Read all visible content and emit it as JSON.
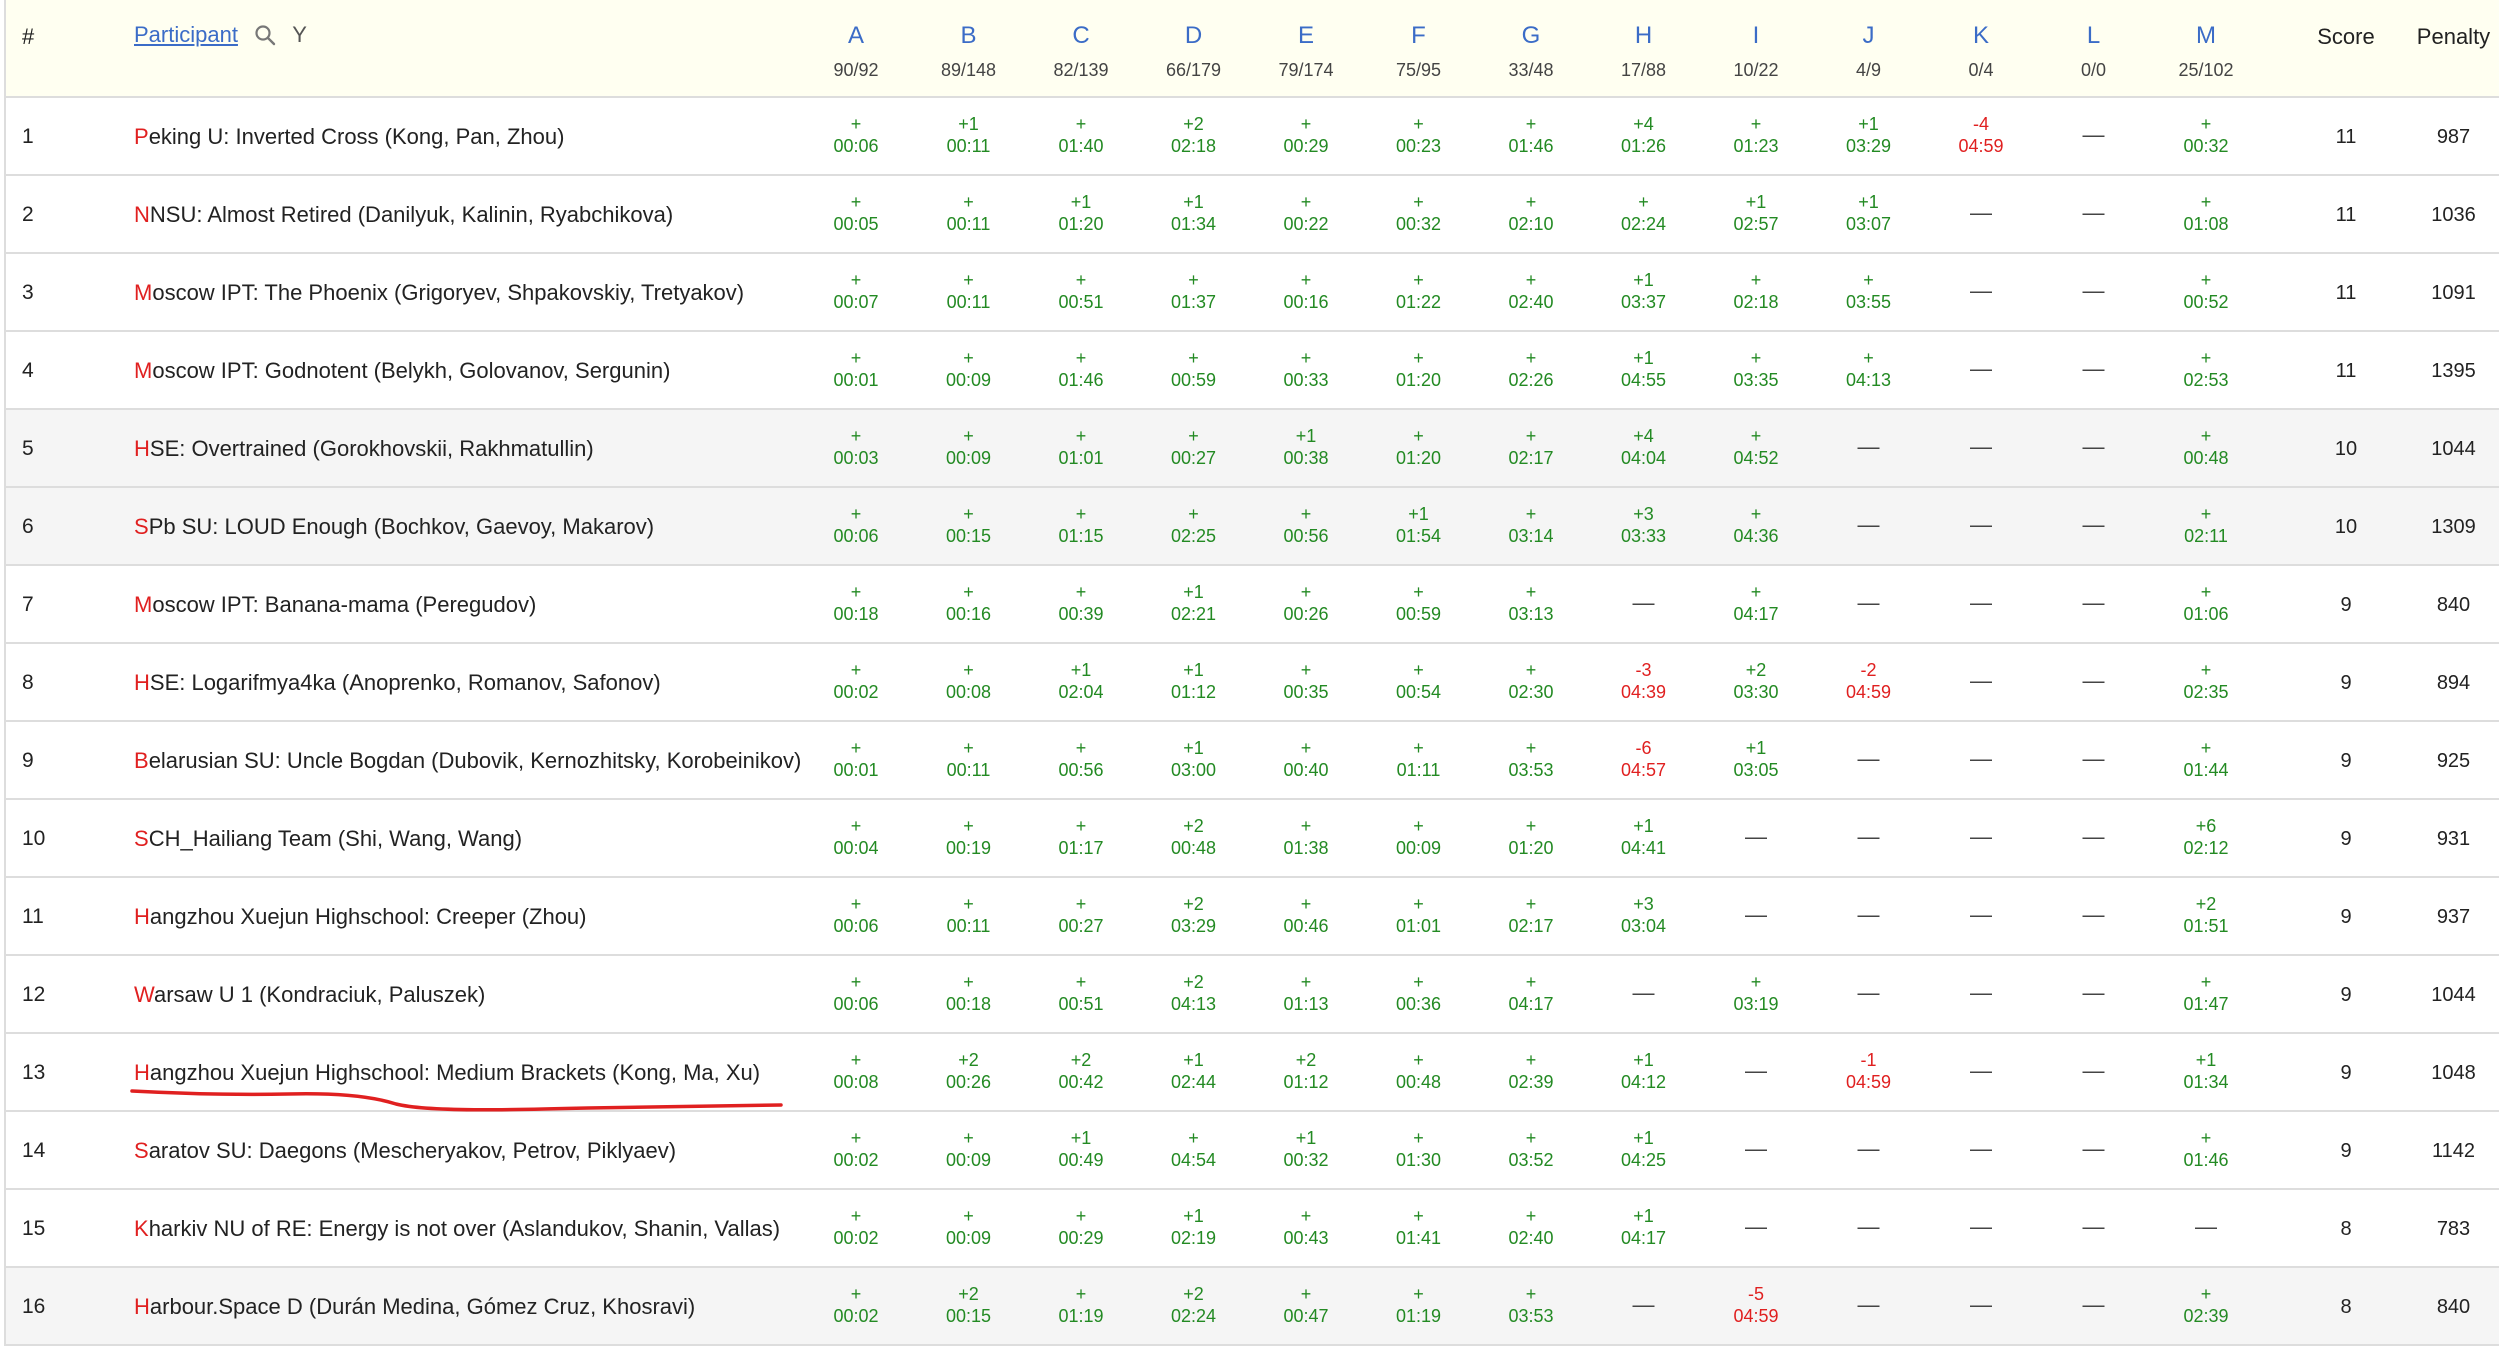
{
  "header": {
    "rank_label": "#",
    "participant_label": "Participant",
    "filter_label": "Y",
    "score_label": "Score",
    "penalty_label": "Penalty",
    "icons": {
      "search": "search-icon",
      "filter": "filter-icon"
    }
  },
  "problems": [
    {
      "letter": "A",
      "stat": "90/92"
    },
    {
      "letter": "B",
      "stat": "89/148"
    },
    {
      "letter": "C",
      "stat": "82/139"
    },
    {
      "letter": "D",
      "stat": "66/179"
    },
    {
      "letter": "E",
      "stat": "79/174"
    },
    {
      "letter": "F",
      "stat": "75/95"
    },
    {
      "letter": "G",
      "stat": "33/48"
    },
    {
      "letter": "H",
      "stat": "17/88"
    },
    {
      "letter": "I",
      "stat": "10/22"
    },
    {
      "letter": "J",
      "stat": "4/9"
    },
    {
      "letter": "K",
      "stat": "0/4"
    },
    {
      "letter": "L",
      "stat": "0/0"
    },
    {
      "letter": "M",
      "stat": "25/102"
    }
  ],
  "colors": {
    "accepted": "#238a23",
    "rejected": "#e02020",
    "link": "#3b6cc7",
    "header_bg": "#fffff1",
    "stripe_bg": "#f5f5f5",
    "highlight_underline": "#e02020"
  },
  "rows": [
    {
      "rank": "1",
      "first": "P",
      "rest": "eking U: Inverted Cross (Kong, Pan, Zhou)",
      "score": "11",
      "penalty": "987",
      "results": [
        [
          "+",
          "00:06"
        ],
        [
          "+1",
          "00:11"
        ],
        [
          "+",
          "01:40"
        ],
        [
          "+2",
          "02:18"
        ],
        [
          "+",
          "00:29"
        ],
        [
          "+",
          "00:23"
        ],
        [
          "+",
          "01:46"
        ],
        [
          "+4",
          "01:26"
        ],
        [
          "+",
          "01:23"
        ],
        [
          "+1",
          "03:29"
        ],
        [
          "-4",
          "04:59"
        ],
        [
          "—",
          ""
        ],
        [
          "+",
          "00:32"
        ]
      ]
    },
    {
      "rank": "2",
      "first": "N",
      "rest": "NSU: Almost Retired (Danilyuk, Kalinin, Ryabchikova)",
      "score": "11",
      "penalty": "1036",
      "results": [
        [
          "+",
          "00:05"
        ],
        [
          "+",
          "00:11"
        ],
        [
          "+1",
          "01:20"
        ],
        [
          "+1",
          "01:34"
        ],
        [
          "+",
          "00:22"
        ],
        [
          "+",
          "00:32"
        ],
        [
          "+",
          "02:10"
        ],
        [
          "+",
          "02:24"
        ],
        [
          "+1",
          "02:57"
        ],
        [
          "+1",
          "03:07"
        ],
        [
          "—",
          ""
        ],
        [
          "—",
          ""
        ],
        [
          "+",
          "01:08"
        ]
      ]
    },
    {
      "rank": "3",
      "first": "M",
      "rest": "oscow IPT: The Phoenix (Grigoryev, Shpakovskiy, Tretyakov)",
      "score": "11",
      "penalty": "1091",
      "results": [
        [
          "+",
          "00:07"
        ],
        [
          "+",
          "00:11"
        ],
        [
          "+",
          "00:51"
        ],
        [
          "+",
          "01:37"
        ],
        [
          "+",
          "00:16"
        ],
        [
          "+",
          "01:22"
        ],
        [
          "+",
          "02:40"
        ],
        [
          "+1",
          "03:37"
        ],
        [
          "+",
          "02:18"
        ],
        [
          "+",
          "03:55"
        ],
        [
          "—",
          ""
        ],
        [
          "—",
          ""
        ],
        [
          "+",
          "00:52"
        ]
      ]
    },
    {
      "rank": "4",
      "first": "M",
      "rest": "oscow IPT: Godnotent (Belykh, Golovanov, Sergunin)",
      "score": "11",
      "penalty": "1395",
      "results": [
        [
          "+",
          "00:01"
        ],
        [
          "+",
          "00:09"
        ],
        [
          "+",
          "01:46"
        ],
        [
          "+",
          "00:59"
        ],
        [
          "+",
          "00:33"
        ],
        [
          "+",
          "01:20"
        ],
        [
          "+",
          "02:26"
        ],
        [
          "+1",
          "04:55"
        ],
        [
          "+",
          "03:35"
        ],
        [
          "+",
          "04:13"
        ],
        [
          "—",
          ""
        ],
        [
          "—",
          ""
        ],
        [
          "+",
          "02:53"
        ]
      ]
    },
    {
      "rank": "5",
      "first": "H",
      "rest": "SE: Overtrained (Gorokhovskii, Rakhmatullin)",
      "score": "10",
      "penalty": "1044",
      "results": [
        [
          "+",
          "00:03"
        ],
        [
          "+",
          "00:09"
        ],
        [
          "+",
          "01:01"
        ],
        [
          "+",
          "00:27"
        ],
        [
          "+1",
          "00:38"
        ],
        [
          "+",
          "01:20"
        ],
        [
          "+",
          "02:17"
        ],
        [
          "+4",
          "04:04"
        ],
        [
          "+",
          "04:52"
        ],
        [
          "—",
          ""
        ],
        [
          "—",
          ""
        ],
        [
          "—",
          ""
        ],
        [
          "+",
          "00:48"
        ]
      ]
    },
    {
      "rank": "6",
      "first": "S",
      "rest": "Pb SU: LOUD Enough (Bochkov, Gaevoy, Makarov)",
      "score": "10",
      "penalty": "1309",
      "results": [
        [
          "+",
          "00:06"
        ],
        [
          "+",
          "00:15"
        ],
        [
          "+",
          "01:15"
        ],
        [
          "+",
          "02:25"
        ],
        [
          "+",
          "00:56"
        ],
        [
          "+1",
          "01:54"
        ],
        [
          "+",
          "03:14"
        ],
        [
          "+3",
          "03:33"
        ],
        [
          "+",
          "04:36"
        ],
        [
          "—",
          ""
        ],
        [
          "—",
          ""
        ],
        [
          "—",
          ""
        ],
        [
          "+",
          "02:11"
        ]
      ]
    },
    {
      "rank": "7",
      "first": "M",
      "rest": "oscow IPT: Banana-mama (Peregudov)",
      "score": "9",
      "penalty": "840",
      "results": [
        [
          "+",
          "00:18"
        ],
        [
          "+",
          "00:16"
        ],
        [
          "+",
          "00:39"
        ],
        [
          "+1",
          "02:21"
        ],
        [
          "+",
          "00:26"
        ],
        [
          "+",
          "00:59"
        ],
        [
          "+",
          "03:13"
        ],
        [
          "—",
          ""
        ],
        [
          "+",
          "04:17"
        ],
        [
          "—",
          ""
        ],
        [
          "—",
          ""
        ],
        [
          "—",
          ""
        ],
        [
          "+",
          "01:06"
        ]
      ]
    },
    {
      "rank": "8",
      "first": "H",
      "rest": "SE: Logarifmya4ka (Anoprenko, Romanov, Safonov)",
      "score": "9",
      "penalty": "894",
      "results": [
        [
          "+",
          "00:02"
        ],
        [
          "+",
          "00:08"
        ],
        [
          "+1",
          "02:04"
        ],
        [
          "+1",
          "01:12"
        ],
        [
          "+",
          "00:35"
        ],
        [
          "+",
          "00:54"
        ],
        [
          "+",
          "02:30"
        ],
        [
          "-3",
          "04:39"
        ],
        [
          "+2",
          "03:30"
        ],
        [
          "-2",
          "04:59"
        ],
        [
          "—",
          ""
        ],
        [
          "—",
          ""
        ],
        [
          "+",
          "02:35"
        ]
      ]
    },
    {
      "rank": "9",
      "first": "B",
      "rest": "elarusian SU: Uncle Bogdan (Dubovik, Kernozhitsky, Korobeinikov)",
      "score": "9",
      "penalty": "925",
      "results": [
        [
          "+",
          "00:01"
        ],
        [
          "+",
          "00:11"
        ],
        [
          "+",
          "00:56"
        ],
        [
          "+1",
          "03:00"
        ],
        [
          "+",
          "00:40"
        ],
        [
          "+",
          "01:11"
        ],
        [
          "+",
          "03:53"
        ],
        [
          "-6",
          "04:57"
        ],
        [
          "+1",
          "03:05"
        ],
        [
          "—",
          ""
        ],
        [
          "—",
          ""
        ],
        [
          "—",
          ""
        ],
        [
          "+",
          "01:44"
        ]
      ]
    },
    {
      "rank": "10",
      "first": "S",
      "rest": "CH_Hailiang Team (Shi, Wang, Wang)",
      "score": "9",
      "penalty": "931",
      "results": [
        [
          "+",
          "00:04"
        ],
        [
          "+",
          "00:19"
        ],
        [
          "+",
          "01:17"
        ],
        [
          "+2",
          "00:48"
        ],
        [
          "+",
          "01:38"
        ],
        [
          "+",
          "00:09"
        ],
        [
          "+",
          "01:20"
        ],
        [
          "+1",
          "04:41"
        ],
        [
          "—",
          ""
        ],
        [
          "—",
          ""
        ],
        [
          "—",
          ""
        ],
        [
          "—",
          ""
        ],
        [
          "+6",
          "02:12"
        ]
      ]
    },
    {
      "rank": "11",
      "first": "H",
      "rest": "angzhou Xuejun Highschool: Creeper (Zhou)",
      "score": "9",
      "penalty": "937",
      "results": [
        [
          "+",
          "00:06"
        ],
        [
          "+",
          "00:11"
        ],
        [
          "+",
          "00:27"
        ],
        [
          "+2",
          "03:29"
        ],
        [
          "+",
          "00:46"
        ],
        [
          "+",
          "01:01"
        ],
        [
          "+",
          "02:17"
        ],
        [
          "+3",
          "03:04"
        ],
        [
          "—",
          ""
        ],
        [
          "—",
          ""
        ],
        [
          "—",
          ""
        ],
        [
          "—",
          ""
        ],
        [
          "+2",
          "01:51"
        ]
      ]
    },
    {
      "rank": "12",
      "first": "W",
      "rest": "arsaw U 1 (Kondraciuk, Paluszek)",
      "score": "9",
      "penalty": "1044",
      "results": [
        [
          "+",
          "00:06"
        ],
        [
          "+",
          "00:18"
        ],
        [
          "+",
          "00:51"
        ],
        [
          "+2",
          "04:13"
        ],
        [
          "+",
          "01:13"
        ],
        [
          "+",
          "00:36"
        ],
        [
          "+",
          "04:17"
        ],
        [
          "—",
          ""
        ],
        [
          "+",
          "03:19"
        ],
        [
          "—",
          ""
        ],
        [
          "—",
          ""
        ],
        [
          "—",
          ""
        ],
        [
          "+",
          "01:47"
        ]
      ]
    },
    {
      "rank": "13",
      "first": "H",
      "rest": "angzhou Xuejun Highschool: Medium Brackets (Kong, Ma, Xu)",
      "score": "9",
      "penalty": "1048",
      "results": [
        [
          "+",
          "00:08"
        ],
        [
          "+2",
          "00:26"
        ],
        [
          "+2",
          "00:42"
        ],
        [
          "+1",
          "02:44"
        ],
        [
          "+2",
          "01:12"
        ],
        [
          "+",
          "00:48"
        ],
        [
          "+",
          "02:39"
        ],
        [
          "+1",
          "04:12"
        ],
        [
          "—",
          ""
        ],
        [
          "-1",
          "04:59"
        ],
        [
          "—",
          ""
        ],
        [
          "—",
          ""
        ],
        [
          "+1",
          "01:34"
        ]
      ]
    },
    {
      "rank": "14",
      "first": "S",
      "rest": "aratov SU: Daegons (Mescheryakov, Petrov, Piklyaev)",
      "score": "9",
      "penalty": "1142",
      "results": [
        [
          "+",
          "00:02"
        ],
        [
          "+",
          "00:09"
        ],
        [
          "+1",
          "00:49"
        ],
        [
          "+",
          "04:54"
        ],
        [
          "+1",
          "00:32"
        ],
        [
          "+",
          "01:30"
        ],
        [
          "+",
          "03:52"
        ],
        [
          "+1",
          "04:25"
        ],
        [
          "—",
          ""
        ],
        [
          "—",
          ""
        ],
        [
          "—",
          ""
        ],
        [
          "—",
          ""
        ],
        [
          "+",
          "01:46"
        ]
      ]
    },
    {
      "rank": "15",
      "first": "K",
      "rest": "harkiv NU of RE: Energy is not over (Aslandukov, Shanin, Vallas)",
      "score": "8",
      "penalty": "783",
      "results": [
        [
          "+",
          "00:02"
        ],
        [
          "+",
          "00:09"
        ],
        [
          "+",
          "00:29"
        ],
        [
          "+1",
          "02:19"
        ],
        [
          "+",
          "00:43"
        ],
        [
          "+",
          "01:41"
        ],
        [
          "+",
          "02:40"
        ],
        [
          "+1",
          "04:17"
        ],
        [
          "—",
          ""
        ],
        [
          "—",
          ""
        ],
        [
          "—",
          ""
        ],
        [
          "—",
          ""
        ],
        [
          "—",
          ""
        ]
      ]
    },
    {
      "rank": "16",
      "first": "H",
      "rest": "arbour.Space D (Durán Medina, Gómez Cruz, Khosravi)",
      "score": "8",
      "penalty": "840",
      "results": [
        [
          "+",
          "00:02"
        ],
        [
          "+2",
          "00:15"
        ],
        [
          "+",
          "01:19"
        ],
        [
          "+2",
          "02:24"
        ],
        [
          "+",
          "00:47"
        ],
        [
          "+",
          "01:19"
        ],
        [
          "+",
          "03:53"
        ],
        [
          "—",
          ""
        ],
        [
          "-5",
          "04:59"
        ],
        [
          "—",
          ""
        ],
        [
          "—",
          ""
        ],
        [
          "—",
          ""
        ],
        [
          "+",
          "02:39"
        ]
      ]
    }
  ]
}
